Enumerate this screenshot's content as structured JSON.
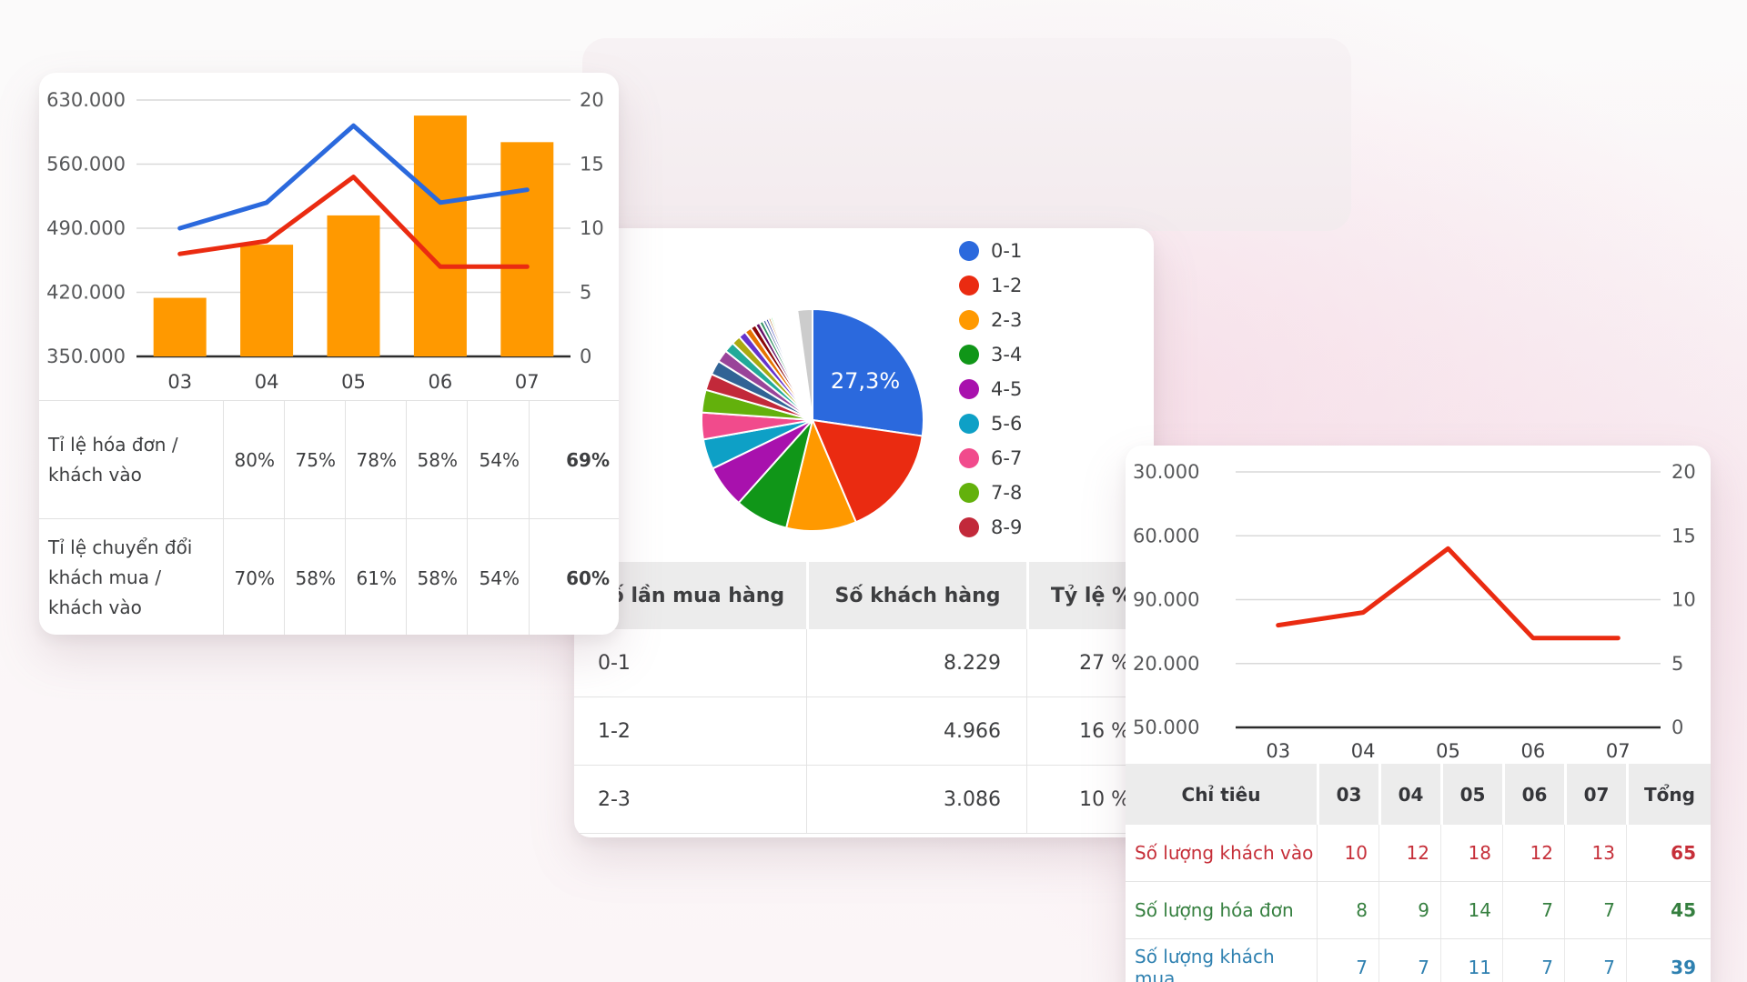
{
  "colors": {
    "bar_orange": "#ff9900",
    "line_blue": "#2b69dd",
    "line_red": "#ea2b11",
    "grid": "#d9d9d9",
    "axis_baseline": "#2b2b2b",
    "header_bg": "#ececec",
    "border": "#e2e2e2"
  },
  "card1": {
    "table": {
      "rows": [
        {
          "label": "Tỉ lệ hóa đơn / khách vào",
          "values": [
            "80%",
            "75%",
            "78%",
            "58%",
            "54%",
            "69%"
          ]
        },
        {
          "label": "Tỉ lệ chuyển đổi khách mua / khách vào",
          "values": [
            "70%",
            "58%",
            "61%",
            "58%",
            "54%",
            "60%"
          ]
        }
      ]
    }
  },
  "card2": {
    "table": {
      "headers": [
        "Số lần mua hàng",
        "Số khách hàng",
        "Tỷ lệ %"
      ],
      "rows": [
        {
          "range": "0-1",
          "customers": "8.229",
          "pct": "27 %"
        },
        {
          "range": "1-2",
          "customers": "4.966",
          "pct": "16 %"
        },
        {
          "range": "2-3",
          "customers": "3.086",
          "pct": "10 %"
        }
      ]
    }
  },
  "card3": {
    "table": {
      "headers": [
        "Chỉ tiêu",
        "03",
        "04",
        "05",
        "06",
        "07",
        "Tổng"
      ],
      "rows": [
        {
          "label": "Số lượng khách vào",
          "color": "#c62f39",
          "values": [
            "10",
            "12",
            "18",
            "12",
            "13",
            "65"
          ]
        },
        {
          "label": "Số lượng hóa đơn",
          "color": "#357f3f",
          "values": [
            "8",
            "9",
            "14",
            "7",
            "7",
            "45"
          ]
        },
        {
          "label": "Số lượng khách mua",
          "color": "#2e80b0",
          "values": [
            "7",
            "7",
            "11",
            "7",
            "7",
            "39"
          ]
        }
      ]
    }
  },
  "chart_data": [
    {
      "type": "bar",
      "subtype": "combo-bar-line",
      "categories": [
        "03",
        "04",
        "05",
        "06",
        "07"
      ],
      "left_ticks": [
        "630.000",
        "560.000",
        "490.000",
        "420.000",
        "350.000"
      ],
      "left_range": [
        350000,
        630000
      ],
      "right_ticks": [
        "20",
        "15",
        "10",
        "5",
        "0"
      ],
      "right_range": [
        0,
        20
      ],
      "grid": true,
      "bars": {
        "name": "bars-orange",
        "axis": "left",
        "color": "#ff9900",
        "values": [
          414000,
          472000,
          504000,
          613000,
          584000
        ]
      },
      "series": [
        {
          "name": "series-blue",
          "axis": "right",
          "color": "#2b69dd",
          "values": [
            10,
            12,
            18,
            12,
            13
          ]
        },
        {
          "name": "series-red",
          "axis": "right",
          "color": "#ea2b11",
          "values": [
            8,
            9,
            14,
            7,
            7
          ]
        }
      ]
    },
    {
      "type": "pie",
      "data_label": "27,3%",
      "legend_position": "right",
      "slices": [
        {
          "label": "0-1",
          "pct": 27.3,
          "color": "#2b69dd"
        },
        {
          "label": "1-2",
          "pct": 16.3,
          "color": "#ea2b11"
        },
        {
          "label": "2-3",
          "pct": 10.2,
          "color": "#ff9900"
        },
        {
          "label": "3-4",
          "pct": 7.8,
          "color": "#109618"
        },
        {
          "label": "4-5",
          "pct": 6.2,
          "color": "#a811ad"
        },
        {
          "label": "5-6",
          "pct": 4.4,
          "color": "#0ea0c6"
        },
        {
          "label": "6-7",
          "pct": 3.9,
          "color": "#f14b8c"
        },
        {
          "label": "7-8",
          "pct": 3.3,
          "color": "#63b10c"
        },
        {
          "label": "8-9",
          "pct": 2.4,
          "color": "#c2293a"
        },
        {
          "label": "",
          "pct": 2.1,
          "color": "#316395"
        },
        {
          "label": "",
          "pct": 1.8,
          "color": "#994499"
        },
        {
          "label": "",
          "pct": 1.5,
          "color": "#22aa99"
        },
        {
          "label": "",
          "pct": 1.3,
          "color": "#aaaa11"
        },
        {
          "label": "",
          "pct": 1.1,
          "color": "#6633cc"
        },
        {
          "label": "",
          "pct": 1.0,
          "color": "#e67300"
        },
        {
          "label": "",
          "pct": 0.8,
          "color": "#8b0707"
        },
        {
          "label": "",
          "pct": 0.65,
          "color": "#651067"
        },
        {
          "label": "",
          "pct": 0.55,
          "color": "#329262"
        },
        {
          "label": "",
          "pct": 0.45,
          "color": "#5574a6"
        },
        {
          "label": "",
          "pct": 0.4,
          "color": "#3b3eac"
        },
        {
          "label": "",
          "pct": 0.35,
          "color": "#b77322"
        },
        {
          "label": "",
          "pct": 0.3,
          "color": "#16d620"
        },
        {
          "label": "",
          "pct": 0.25,
          "color": "#b91383"
        },
        {
          "label": "",
          "pct": 0.2,
          "color": "#f4359e"
        },
        {
          "label": "",
          "pct": 0.15,
          "color": "#9c5935"
        },
        {
          "label": "",
          "pct": 3.1,
          "color": "#ffffff"
        },
        {
          "label": "",
          "pct": 2.2,
          "color": "#cccccc"
        }
      ]
    },
    {
      "type": "line",
      "categories": [
        "03",
        "04",
        "05",
        "06",
        "07"
      ],
      "left_tick_labels": [
        "30.000",
        "60.000",
        "90.000",
        "20.000",
        "50.000"
      ],
      "right_ticks": [
        "20",
        "15",
        "10",
        "5",
        "0"
      ],
      "right_range": [
        0,
        20
      ],
      "grid": true,
      "series": [
        {
          "name": "series-red",
          "axis": "right",
          "color": "#ea2b11",
          "values": [
            8,
            9,
            14,
            7,
            7
          ]
        }
      ]
    }
  ]
}
